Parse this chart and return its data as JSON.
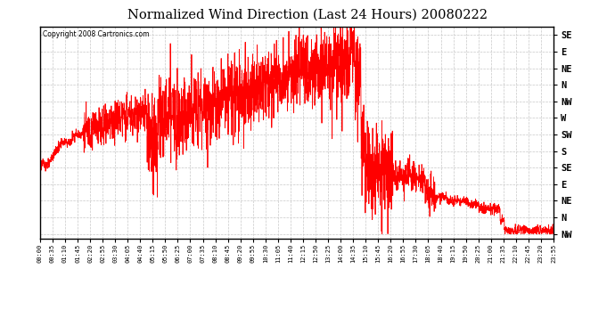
{
  "title": "Normalized Wind Direction (Last 24 Hours) 20080222",
  "copyright": "Copyright 2008 Cartronics.com",
  "line_color": "#ff0000",
  "background_color": "#ffffff",
  "grid_color": "#c8c8c8",
  "ytick_labels_top_to_bottom": [
    "SE",
    "E",
    "NE",
    "N",
    "NW",
    "W",
    "SW",
    "S",
    "SE",
    "E",
    "NE",
    "N",
    "NW"
  ],
  "xtick_labels": [
    "00:00",
    "00:35",
    "01:10",
    "01:45",
    "02:20",
    "02:55",
    "03:30",
    "04:05",
    "04:40",
    "05:15",
    "05:50",
    "06:25",
    "07:00",
    "07:35",
    "08:10",
    "08:45",
    "09:20",
    "09:55",
    "10:30",
    "11:05",
    "11:40",
    "12:15",
    "12:50",
    "13:25",
    "14:00",
    "14:35",
    "15:10",
    "15:45",
    "16:20",
    "16:55",
    "17:30",
    "18:05",
    "18:40",
    "19:15",
    "19:50",
    "20:25",
    "21:00",
    "21:35",
    "22:10",
    "22:45",
    "23:20",
    "23:55"
  ],
  "figsize": [
    6.9,
    3.75
  ],
  "dpi": 100
}
